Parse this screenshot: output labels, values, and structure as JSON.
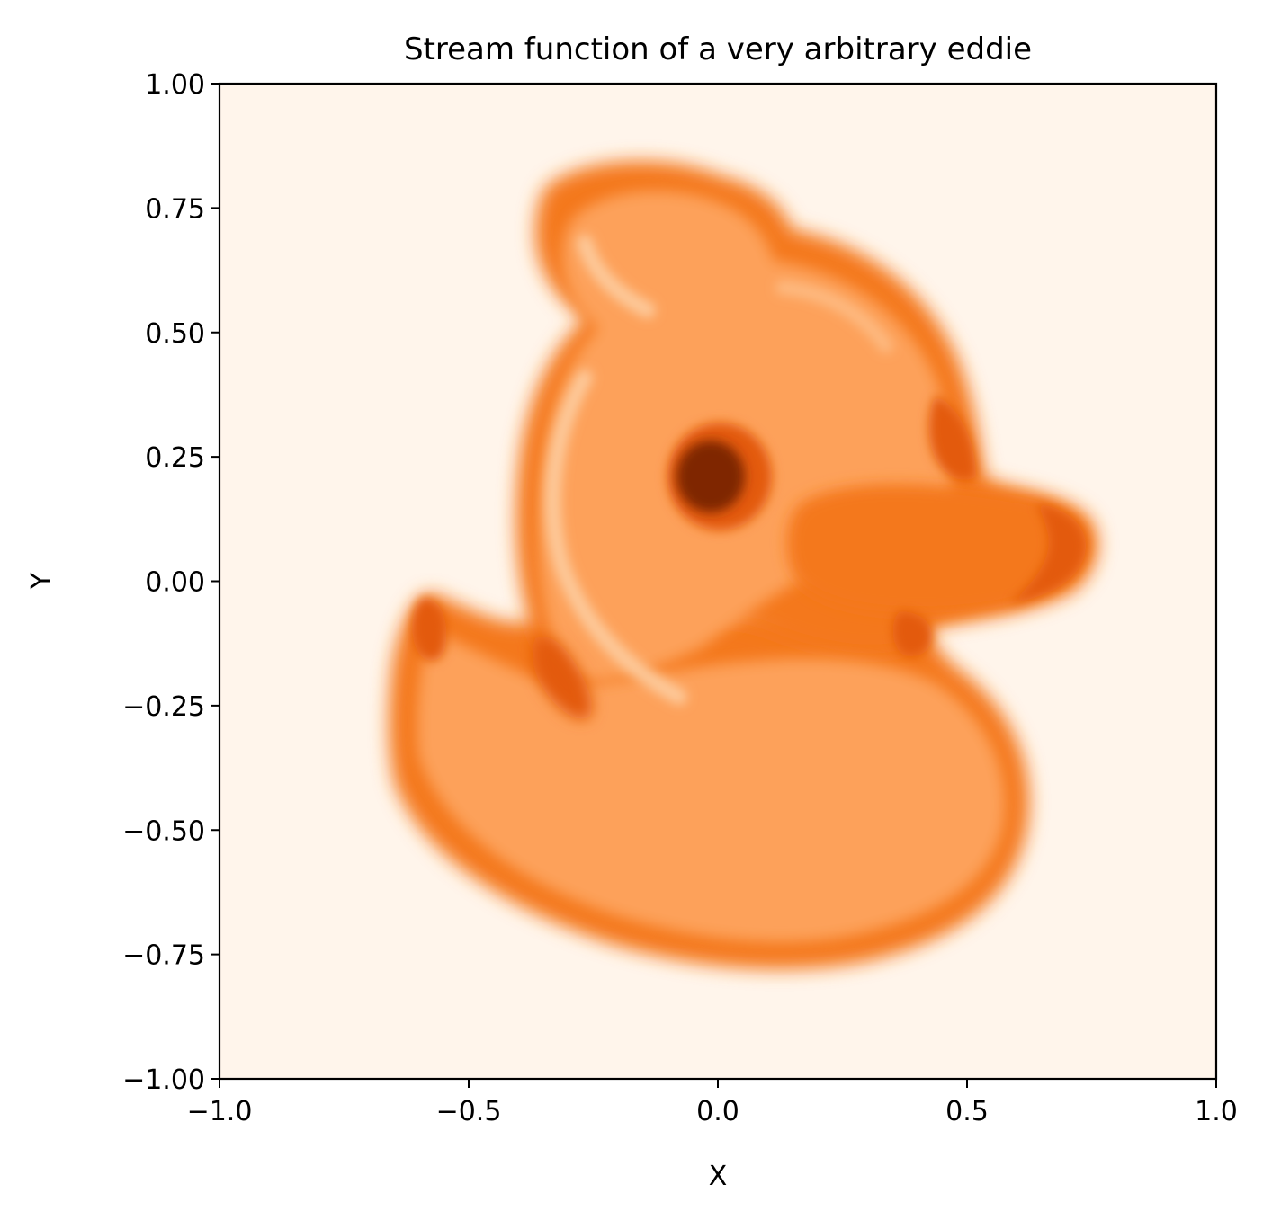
{
  "chart_data": {
    "type": "heatmap",
    "title": "Stream function of a very arbitrary eddie",
    "xlabel": "X",
    "ylabel": "Y",
    "xlim": [
      -1.0,
      1.0
    ],
    "ylim": [
      -1.0,
      1.0
    ],
    "x_ticks": [
      -1.0,
      -0.5,
      0.0,
      0.5,
      1.0
    ],
    "x_tick_labels": [
      "−1.0",
      "−0.5",
      "0.0",
      "0.5",
      "1.0"
    ],
    "y_ticks": [
      1.0,
      0.75,
      0.5,
      0.25,
      0.0,
      -0.25,
      -0.5,
      -0.75,
      -1.0
    ],
    "y_tick_labels": [
      "1.00",
      "0.75",
      "0.50",
      "0.25",
      "0.00",
      "−0.25",
      "−0.50",
      "−0.75",
      "−1.00"
    ],
    "grid": false,
    "colormap": "Oranges",
    "colors": {
      "background": "#fff5eb",
      "body": "#fda15a",
      "outline": "#f4781e",
      "dark": "#e35a0c",
      "eye": "#7f2704",
      "highlight": "#fdc99a"
    }
  }
}
